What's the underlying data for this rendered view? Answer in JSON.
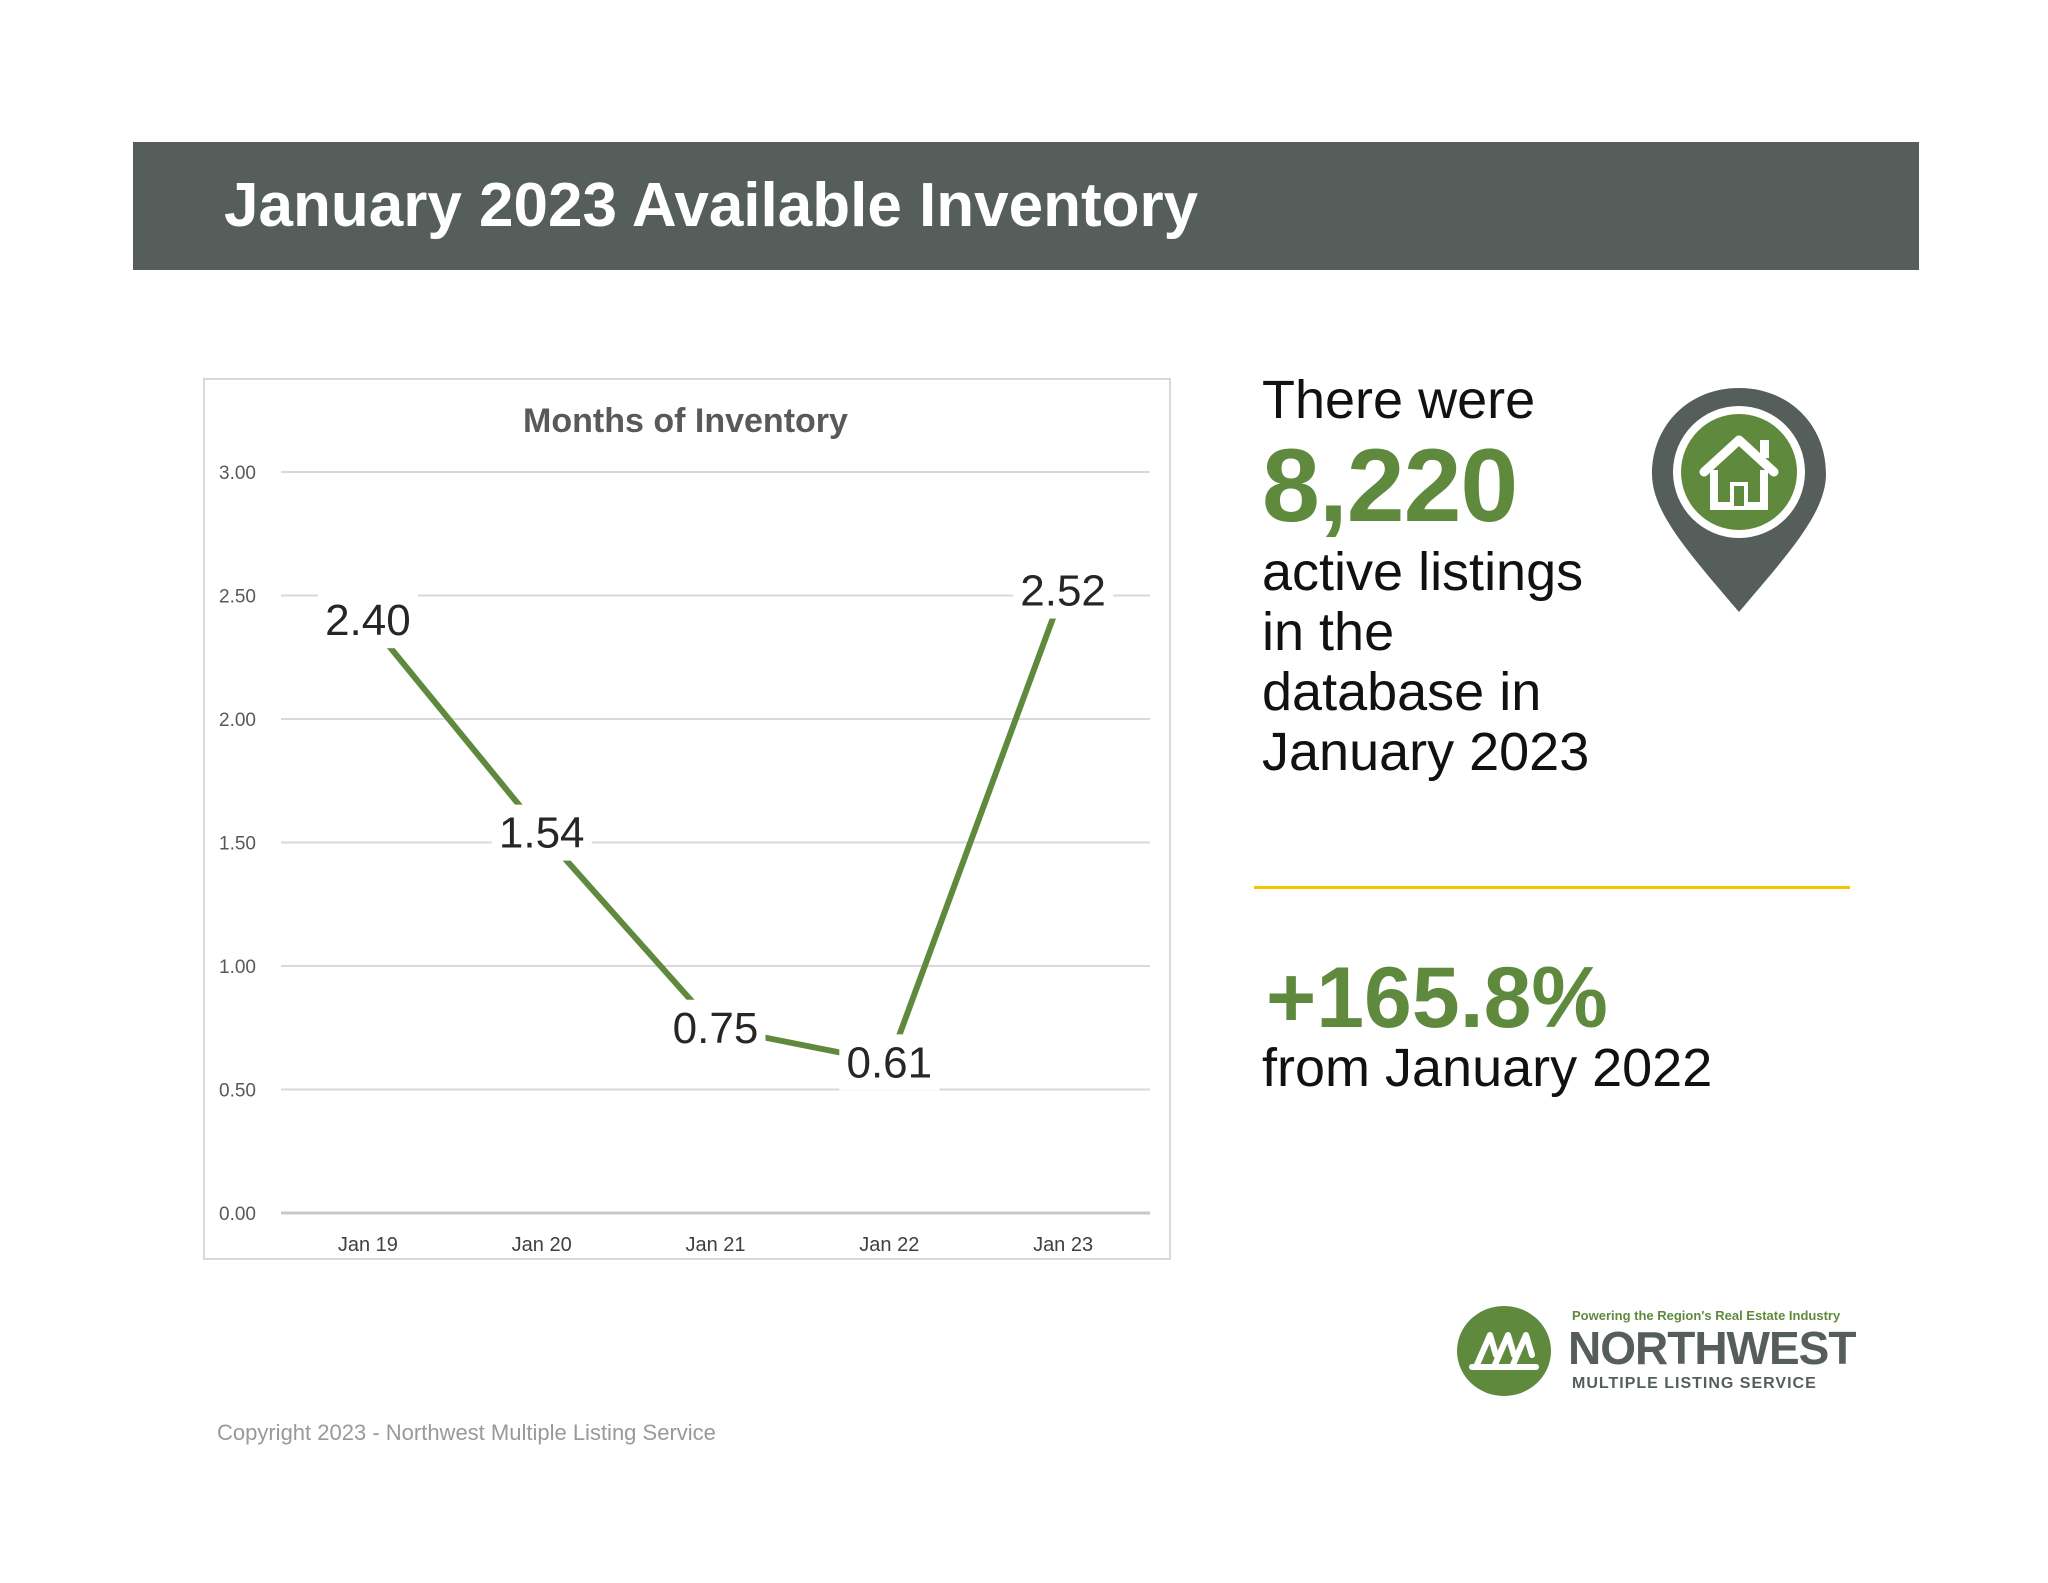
{
  "header": {
    "title": "January 2023 Available Inventory"
  },
  "stats": {
    "lead": "There were",
    "count": "8,220",
    "desc_lines": [
      "active listings",
      "in the",
      "database in",
      "January 2023"
    ],
    "change": "+165.8%",
    "change_desc": "from January 2022",
    "icon": "house-location-pin-icon"
  },
  "logo": {
    "tagline": "Powering the Region's Real Estate Industry",
    "name": "NORTHWEST",
    "sub": "MULTIPLE LISTING SERVICE",
    "icon": "nwmls-trees-logo-icon"
  },
  "footer": {
    "copyright": "Copyright 2023 - Northwest Multiple Listing Service"
  },
  "colors": {
    "header_bg": "#555e5b",
    "accent_green": "#5f8a3e",
    "divider_yellow": "#f2c500",
    "gridline": "#d9d9d9"
  },
  "chart_data": {
    "type": "line",
    "title": "Months of Inventory",
    "xlabel": "",
    "ylabel": "",
    "categories": [
      "Jan 19",
      "Jan 20",
      "Jan 21",
      "Jan 22",
      "Jan 23"
    ],
    "series": [
      {
        "values": [
          2.4,
          1.54,
          0.75,
          0.61,
          2.52
        ],
        "labels": [
          "2.40",
          "1.54",
          "0.75",
          "0.61",
          "2.52"
        ],
        "color": "#5f8a3e"
      }
    ],
    "ylim": [
      0,
      3
    ],
    "yticks": [
      "0.00",
      "0.50",
      "1.00",
      "1.50",
      "2.00",
      "2.50",
      "3.00"
    ],
    "grid": true,
    "legend": "none"
  }
}
